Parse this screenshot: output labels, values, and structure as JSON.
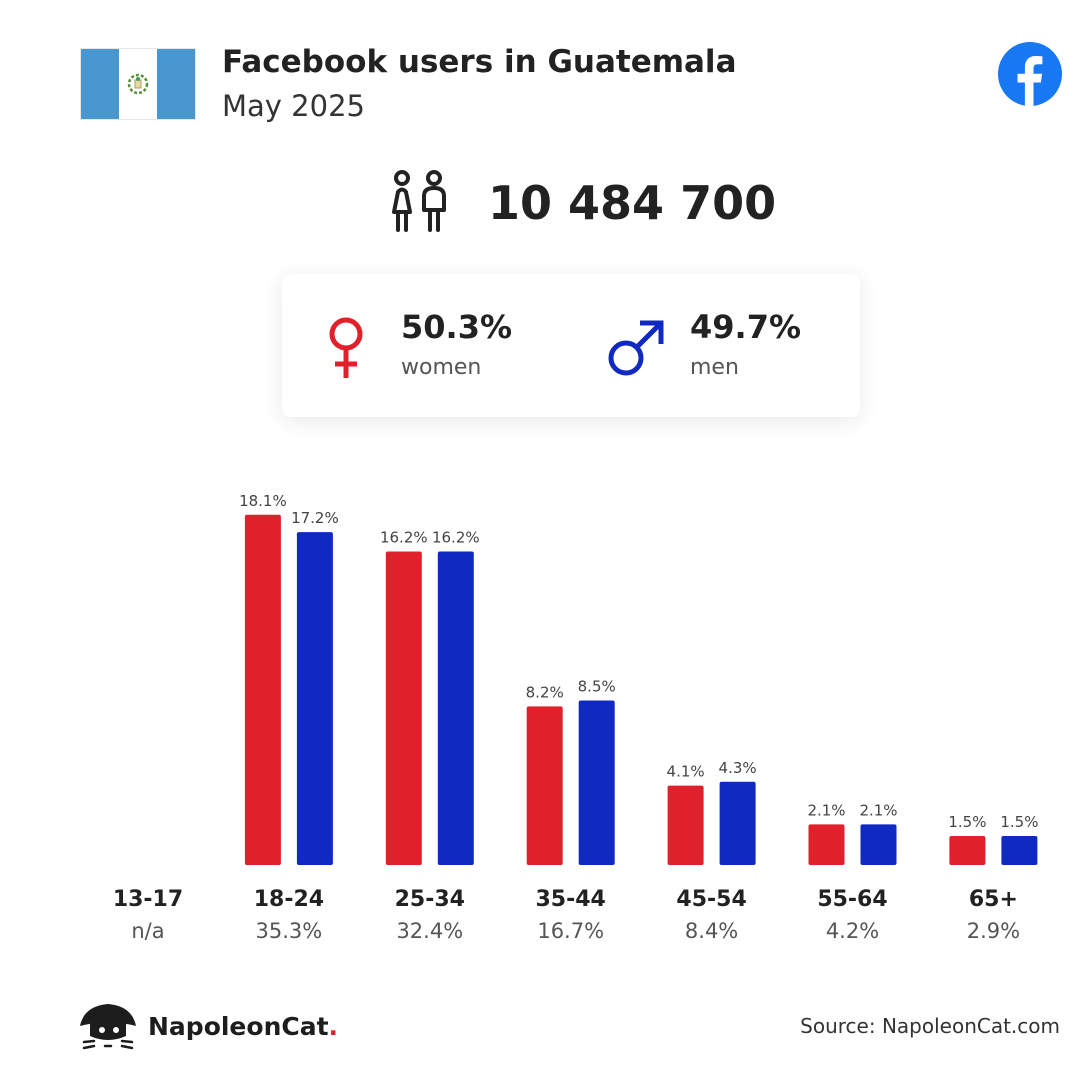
{
  "header": {
    "title": "Facebook users in Guatemala",
    "subtitle": "May 2025"
  },
  "total": {
    "users": "10 484 700"
  },
  "gender": {
    "women": {
      "percent": "50.3%",
      "label": "women",
      "color": "#e0202b"
    },
    "men": {
      "percent": "49.7%",
      "label": "men",
      "color": "#1029c1"
    }
  },
  "chart_data": {
    "type": "bar",
    "categories": [
      "13-17",
      "18-24",
      "25-34",
      "35-44",
      "45-54",
      "55-64",
      "65+"
    ],
    "series": [
      {
        "name": "women",
        "color": "#e0202b",
        "values": [
          null,
          18.1,
          16.2,
          8.2,
          4.1,
          2.1,
          1.5
        ]
      },
      {
        "name": "men",
        "color": "#1029c1",
        "values": [
          null,
          17.2,
          16.2,
          8.5,
          4.3,
          2.1,
          1.5
        ]
      }
    ],
    "value_labels": {
      "women": [
        "",
        "18.1%",
        "16.2%",
        "8.2%",
        "4.1%",
        "2.1%",
        "1.5%"
      ],
      "men": [
        "",
        "17.2%",
        "16.2%",
        "8.5%",
        "4.3%",
        "2.1%",
        "1.5%"
      ]
    },
    "category_totals": [
      "n/a",
      "35.3%",
      "32.4%",
      "16.7%",
      "8.4%",
      "4.2%",
      "2.9%"
    ],
    "title": "",
    "xlabel": "",
    "ylabel": "",
    "grid": false
  },
  "footer": {
    "brand": "NapoleonCat",
    "brand_dot": ".",
    "source": "Source: NapoleonCat.com"
  },
  "icons": {
    "flag": "guatemala-flag-icon",
    "platform": "facebook-logo-icon",
    "users": "users-couple-icon",
    "female": "female-symbol-icon",
    "male": "male-symbol-icon",
    "brand": "napoleoncat-logo-icon"
  }
}
